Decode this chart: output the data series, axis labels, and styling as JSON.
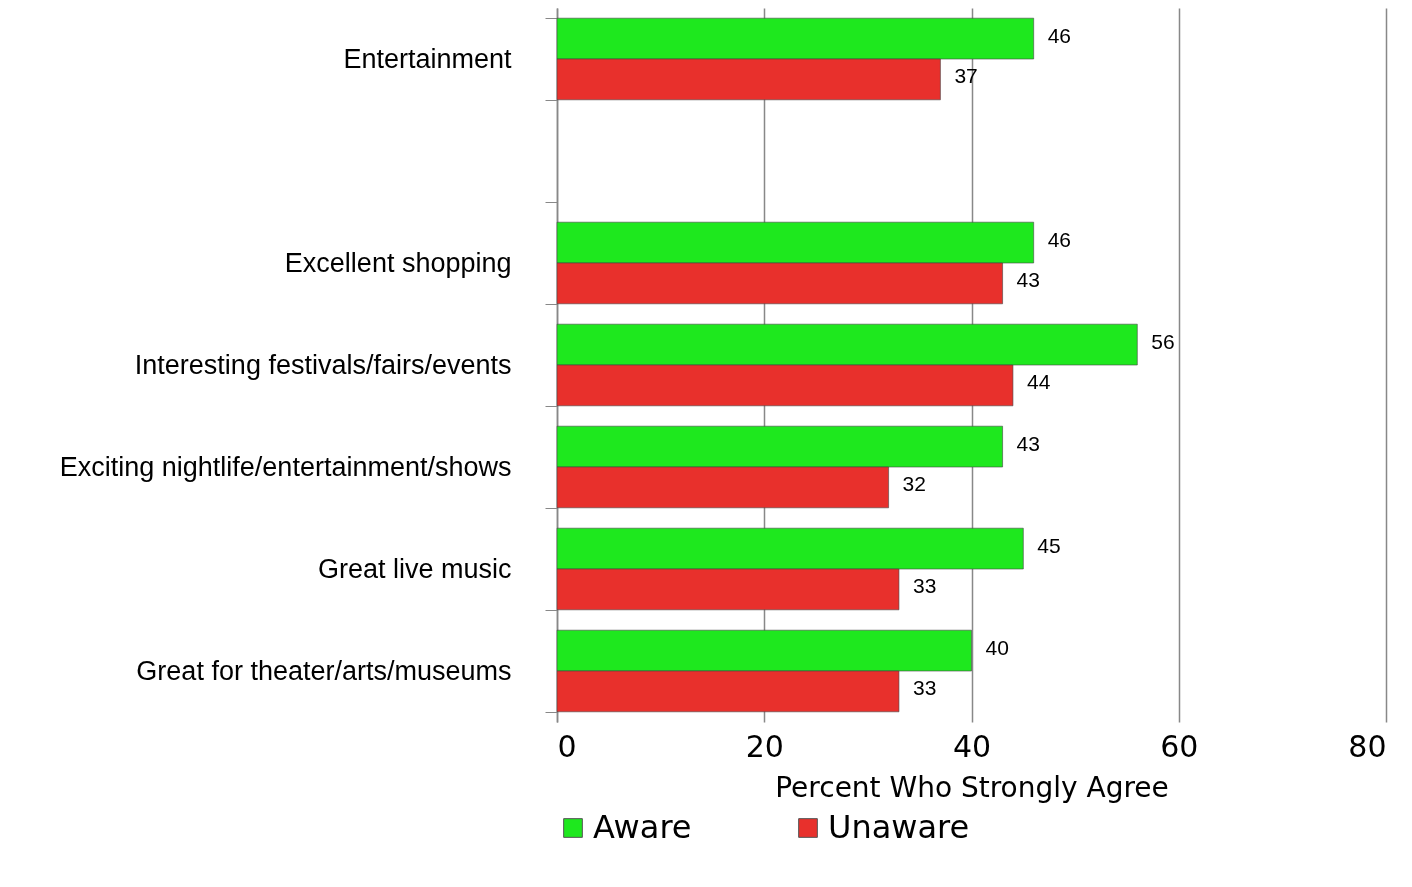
{
  "chart_data": {
    "type": "bar",
    "orientation": "horizontal",
    "xlabel": "Percent Who Strongly Agree",
    "categories": [
      "Entertainment",
      null,
      "Excellent shopping",
      "Interesting festivals/fairs/events",
      "Exciting nightlife/entertainment/shows",
      "Great live music",
      "Great for theater/arts/museums"
    ],
    "series": [
      {
        "name": "Aware",
        "color": "#1ee81e",
        "values": [
          46,
          null,
          46,
          56,
          43,
          45,
          40
        ]
      },
      {
        "name": "Unaware",
        "color": "#e8302c",
        "values": [
          37,
          null,
          43,
          44,
          32,
          33,
          33
        ]
      }
    ],
    "xlim": [
      0,
      80
    ],
    "xticks": [
      0,
      20,
      40,
      60,
      80
    ],
    "grid": "x",
    "legend": "bottom",
    "data_labels": true
  }
}
